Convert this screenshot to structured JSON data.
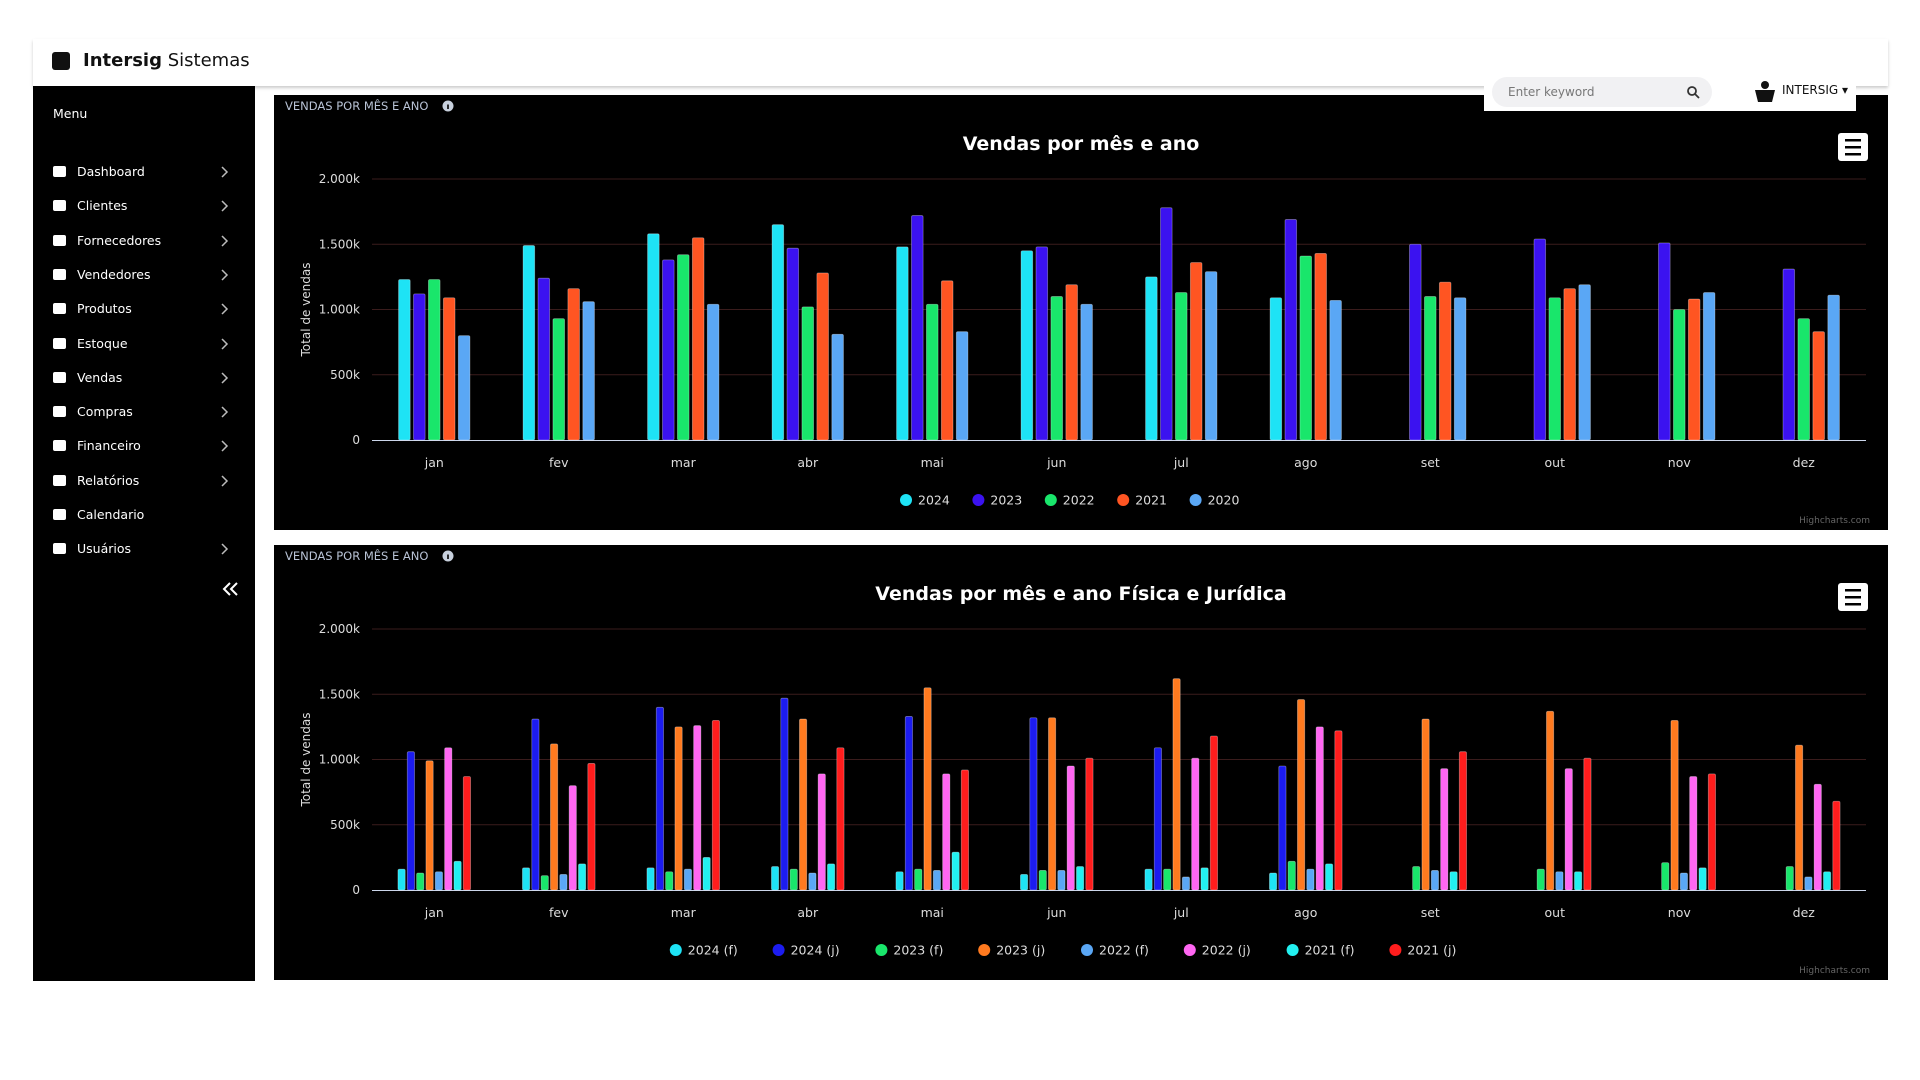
{
  "header": {
    "brand_bold": "Intersig",
    "brand_light": "Sistemas",
    "search_placeholder": "Enter keyword",
    "user": "INTERSIG"
  },
  "sidebar": {
    "title": "Menu",
    "items": [
      "Dashboard",
      "Clientes",
      "Fornecedores",
      "Vendedores",
      "Produtos",
      "Estoque",
      "Vendas",
      "Compras",
      "Financeiro",
      "Relatórios",
      "Calendario",
      "Usuários"
    ]
  },
  "chart_data": [
    {
      "type": "bar",
      "panel_title": "VENDAS POR MÊS E ANO",
      "title": "Vendas por mês e ano",
      "y_label": "Total de vendas",
      "credits": "Highcharts.com",
      "categories": [
        "jan",
        "fev",
        "mar",
        "abr",
        "mai",
        "jun",
        "jul",
        "ago",
        "set",
        "out",
        "nov",
        "dez"
      ],
      "ylim": [
        0,
        2000000
      ],
      "yticks": [
        0,
        {
          "value": 500000,
          "label": "500k"
        },
        {
          "value": 1000000,
          "label": "1.000k"
        },
        {
          "value": 1500000,
          "label": "1.500k"
        },
        {
          "value": 2000000,
          "label": "2.000k"
        }
      ],
      "grid": true,
      "series": [
        {
          "name": "2024",
          "color": "#1ee3f5",
          "values": [
            1230000,
            1490000,
            1580000,
            1650000,
            1480000,
            1450000,
            1250000,
            1090000,
            null,
            null,
            null,
            null
          ]
        },
        {
          "name": "2023",
          "color": "#3b12f0",
          "values": [
            1120000,
            1240000,
            1380000,
            1470000,
            1720000,
            1480000,
            1780000,
            1690000,
            1500000,
            1540000,
            1510000,
            1310000
          ]
        },
        {
          "name": "2022",
          "color": "#19e66b",
          "values": [
            1230000,
            930000,
            1420000,
            1020000,
            1040000,
            1100000,
            1130000,
            1410000,
            1100000,
            1090000,
            1000000,
            930000
          ]
        },
        {
          "name": "2021",
          "color": "#ff5522",
          "values": [
            1090000,
            1160000,
            1550000,
            1280000,
            1220000,
            1190000,
            1360000,
            1430000,
            1210000,
            1160000,
            1080000,
            830000
          ]
        },
        {
          "name": "2020",
          "color": "#5aa7f5",
          "values": [
            800000,
            1060000,
            1040000,
            810000,
            830000,
            1040000,
            1290000,
            1070000,
            1090000,
            1190000,
            1130000,
            1110000
          ]
        }
      ]
    },
    {
      "type": "bar",
      "panel_title": "VENDAS POR MÊS E ANO",
      "title": "Vendas por mês e ano Física e Jurídica",
      "y_label": "Total de vendas",
      "credits": "Highcharts.com",
      "categories": [
        "jan",
        "fev",
        "mar",
        "abr",
        "mai",
        "jun",
        "jul",
        "ago",
        "set",
        "out",
        "nov",
        "dez"
      ],
      "ylim": [
        0,
        2000000
      ],
      "yticks": [
        0,
        {
          "value": 500000,
          "label": "500k"
        },
        {
          "value": 1000000,
          "label": "1.000k"
        },
        {
          "value": 1500000,
          "label": "1.500k"
        },
        {
          "value": 2000000,
          "label": "2.000k"
        }
      ],
      "grid": true,
      "series": [
        {
          "name": "2024 (f)",
          "color": "#1ee3f5",
          "values": [
            160000,
            170000,
            170000,
            180000,
            140000,
            120000,
            160000,
            130000,
            null,
            null,
            null,
            null
          ]
        },
        {
          "name": "2024 (j)",
          "color": "#1c1cf0",
          "values": [
            1060000,
            1310000,
            1400000,
            1470000,
            1330000,
            1320000,
            1090000,
            950000,
            null,
            null,
            null,
            null
          ]
        },
        {
          "name": "2023 (f)",
          "color": "#19e66b",
          "values": [
            130000,
            110000,
            140000,
            160000,
            160000,
            150000,
            160000,
            220000,
            180000,
            160000,
            210000,
            180000
          ]
        },
        {
          "name": "2023 (j)",
          "color": "#ff7a1f",
          "values": [
            990000,
            1120000,
            1250000,
            1310000,
            1550000,
            1320000,
            1620000,
            1460000,
            1310000,
            1370000,
            1300000,
            1110000
          ]
        },
        {
          "name": "2022 (f)",
          "color": "#5aa7f5",
          "values": [
            140000,
            120000,
            160000,
            130000,
            150000,
            150000,
            100000,
            160000,
            150000,
            140000,
            130000,
            100000
          ]
        },
        {
          "name": "2022 (j)",
          "color": "#ff66f2",
          "values": [
            1090000,
            800000,
            1260000,
            890000,
            890000,
            950000,
            1010000,
            1250000,
            930000,
            930000,
            870000,
            810000
          ]
        },
        {
          "name": "2021 (f)",
          "color": "#22f0f0",
          "values": [
            220000,
            200000,
            250000,
            200000,
            290000,
            180000,
            170000,
            200000,
            140000,
            140000,
            170000,
            140000
          ]
        },
        {
          "name": "2021 (j)",
          "color": "#ff1d1d",
          "values": [
            870000,
            970000,
            1300000,
            1090000,
            920000,
            1010000,
            1180000,
            1220000,
            1060000,
            1010000,
            890000,
            680000
          ]
        }
      ]
    }
  ]
}
